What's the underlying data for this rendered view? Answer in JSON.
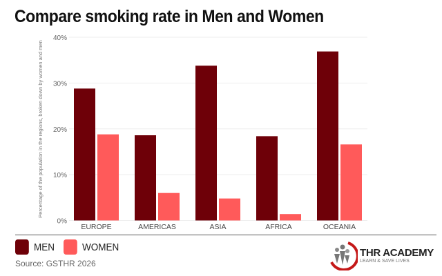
{
  "title": "Compare smoking rate in Men and Women",
  "chart_data": {
    "type": "bar",
    "title": "Compare smoking rate in Men and Women",
    "ylabel": "Percentage of the population in the regions, broken down by women and men",
    "xlabel": "",
    "categories": [
      "EUROPE",
      "AMERICAS",
      "ASIA",
      "AFRICA",
      "OCEANIA"
    ],
    "series": [
      {
        "name": "MEN",
        "color": "#6e0008",
        "values": [
          28.8,
          18.6,
          33.8,
          18.4,
          36.9
        ]
      },
      {
        "name": "WOMEN",
        "color": "#ff5a5a",
        "values": [
          18.8,
          6.0,
          4.8,
          1.4,
          16.6
        ]
      }
    ],
    "ylim": [
      0,
      40
    ],
    "yticks": [
      "0%",
      "10%",
      "20%",
      "30%",
      "40%"
    ],
    "grid": true,
    "legend": "bottom-left"
  },
  "legend": {
    "men": "MEN",
    "women": "WOMEN"
  },
  "source": "Source: GSTHR 2026",
  "logo": {
    "name": "THR ACADEMY",
    "tagline": "LEARN & SAVE LIVES"
  }
}
